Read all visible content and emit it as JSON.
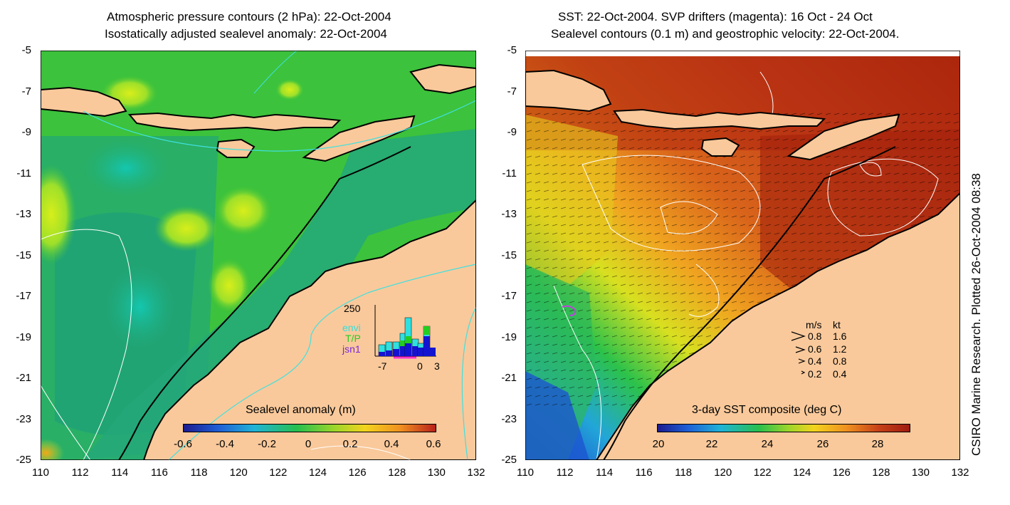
{
  "left": {
    "title_line1": "Atmospheric pressure contours (2 hPa): 22-Oct-2004",
    "title_line2": "Isostatically adjusted sealevel anomaly: 22-Oct-2004",
    "y_ticks": [
      "-5",
      "-7",
      "-9",
      "-11",
      "-13",
      "-15",
      "-17",
      "-19",
      "-21",
      "-23",
      "-25"
    ],
    "x_ticks": [
      "110",
      "112",
      "114",
      "116",
      "118",
      "120",
      "122",
      "124",
      "126",
      "128",
      "130",
      "132"
    ],
    "colorbar_title": "Sealevel anomaly (m)",
    "colorbar_ticks": [
      "-0.6",
      "-0.4",
      "-0.2",
      "0",
      "0.2",
      "0.4",
      "0.6"
    ],
    "inset": {
      "y_max_label": "250",
      "x_tick_labels": [
        "-7",
        "0",
        "3"
      ],
      "legend": [
        {
          "label": "envi",
          "color": "#30e0e0"
        },
        {
          "label": "T/P",
          "color": "#22cc22"
        },
        {
          "label": "jsn1",
          "color": "#7a2bd6"
        }
      ]
    }
  },
  "right": {
    "title_line1": "SST: 22-Oct-2004. SVP drifters (magenta): 16 Oct - 24 Oct",
    "title_line2": "Sealevel contours (0.1 m) and geostrophic velocity: 22-Oct-2004.",
    "y_ticks": [
      "-5",
      "-7",
      "-9",
      "-11",
      "-13",
      "-15",
      "-17",
      "-19",
      "-21",
      "-23",
      "-25"
    ],
    "x_ticks": [
      "110",
      "112",
      "114",
      "116",
      "118",
      "120",
      "122",
      "124",
      "126",
      "128",
      "130",
      "132"
    ],
    "colorbar_title": "3-day SST composite (deg C)",
    "colorbar_ticks": [
      "20",
      "22",
      "24",
      "26",
      "28"
    ],
    "velocity_legend": {
      "header_ms": "m/s",
      "header_kt": "kt",
      "rows": [
        {
          "ms": "0.8",
          "kt": "1.6"
        },
        {
          "ms": "0.6",
          "kt": "1.2"
        },
        {
          "ms": "0.4",
          "kt": "0.8"
        },
        {
          "ms": "0.2",
          "kt": "0.4"
        }
      ]
    }
  },
  "credit": "CSIRO Marine Research. Plotted 26-Oct-2004 08:38",
  "colors": {
    "land": "#f9c99b",
    "sla_green": "#35c43a",
    "sla_teal": "#1fa877",
    "sst_hot": "#b3280c",
    "sst_orange": "#d9641a"
  }
}
